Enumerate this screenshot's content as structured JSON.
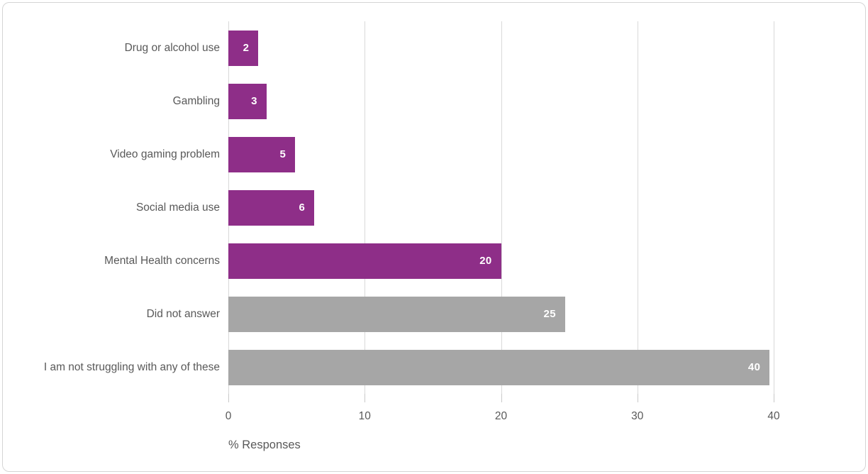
{
  "chart_data": {
    "type": "bar",
    "orientation": "horizontal",
    "title": "",
    "xlabel": "% Responses",
    "ylabel": "",
    "categories": [
      "Drug or alcohol use",
      "Gambling",
      "Video gaming problem",
      "Social media use",
      "Mental Health concerns",
      "Did not answer",
      "I am not struggling with any of these"
    ],
    "values": [
      2,
      3,
      5,
      6,
      20,
      25,
      40
    ],
    "data_labels": [
      "2",
      "3",
      "5",
      "6",
      "20",
      "25",
      "40"
    ],
    "render_values": [
      2.2,
      2.8,
      4.9,
      6.3,
      20,
      24.7,
      39.7
    ],
    "bar_color_keys": [
      "purple",
      "purple",
      "purple",
      "purple",
      "purple",
      "gray",
      "gray"
    ],
    "x_ticks": [
      0,
      10,
      20,
      30,
      40
    ],
    "xlim": [
      0,
      40
    ],
    "grid": "vertical-gridlines-on",
    "legend": "none",
    "colors": {
      "purple": "#8E2E88",
      "gray": "#A6A6A6",
      "gridline": "#D9D9D9",
      "tick": "#C9C9C9",
      "axis_text": "#595959",
      "data_label_text": "#FFFFFF",
      "frame_border": "#D5D5D5",
      "background": "#FFFFFF"
    }
  }
}
